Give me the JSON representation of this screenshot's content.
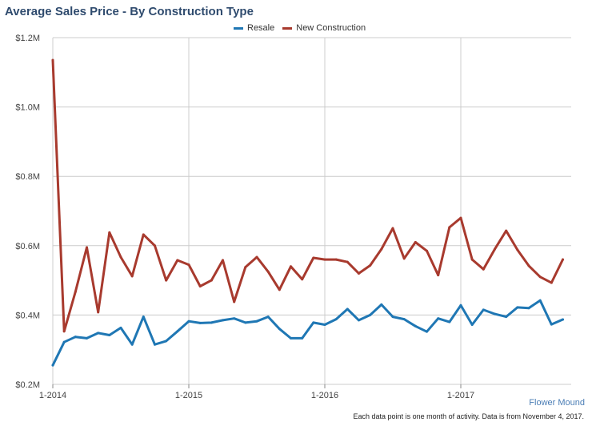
{
  "title": "Average Sales Price - By Construction Type",
  "location": "Flower Mound",
  "footnote": "Each data point is one month of activity. Data is from November 4, 2017.",
  "colors": {
    "resale": "#1f77b4",
    "new_construction": "#a83a2e",
    "grid": "#cccccc",
    "title": "#2f4b6e"
  },
  "chart_data": {
    "type": "line",
    "title": "Average Sales Price - By Construction Type",
    "xlabel": "",
    "ylabel": "",
    "ylim": [
      0.2,
      1.2
    ],
    "yticks": [
      "$0.2M",
      "$0.4M",
      "$0.6M",
      "$0.8M",
      "$1.0M",
      "$1.2M"
    ],
    "ytick_values": [
      0.2,
      0.4,
      0.6,
      0.8,
      1.0,
      1.2
    ],
    "xticks": [
      "1-2014",
      "1-2015",
      "1-2016",
      "1-2017"
    ],
    "xtick_positions": [
      0,
      12,
      24,
      36
    ],
    "x_range": [
      0,
      46
    ],
    "grid": true,
    "legend_position": "top",
    "series": [
      {
        "name": "Resale",
        "color": "#1f77b4",
        "values": [
          0.255,
          0.322,
          0.337,
          0.333,
          0.348,
          0.342,
          0.363,
          0.315,
          0.395,
          0.315,
          0.325,
          0.353,
          0.382,
          0.377,
          0.378,
          0.385,
          0.39,
          0.378,
          0.382,
          0.395,
          0.36,
          0.333,
          0.333,
          0.378,
          0.372,
          0.388,
          0.417,
          0.385,
          0.4,
          0.43,
          0.395,
          0.388,
          0.368,
          0.352,
          0.39,
          0.38,
          0.428,
          0.372,
          0.415,
          0.403,
          0.395,
          0.422,
          0.42,
          0.442,
          0.373,
          0.387
        ]
      },
      {
        "name": "New Construction",
        "color": "#a83a2e",
        "values": [
          1.135,
          0.353,
          0.467,
          0.595,
          0.408,
          0.638,
          0.567,
          0.512,
          0.632,
          0.6,
          0.5,
          0.558,
          0.545,
          0.483,
          0.5,
          0.558,
          0.438,
          0.538,
          0.567,
          0.525,
          0.473,
          0.54,
          0.503,
          0.565,
          0.56,
          0.56,
          0.553,
          0.52,
          0.543,
          0.59,
          0.65,
          0.563,
          0.61,
          0.585,
          0.515,
          0.653,
          0.68,
          0.56,
          0.532,
          0.59,
          0.643,
          0.588,
          0.542,
          0.51,
          0.493,
          0.56
        ]
      }
    ]
  }
}
